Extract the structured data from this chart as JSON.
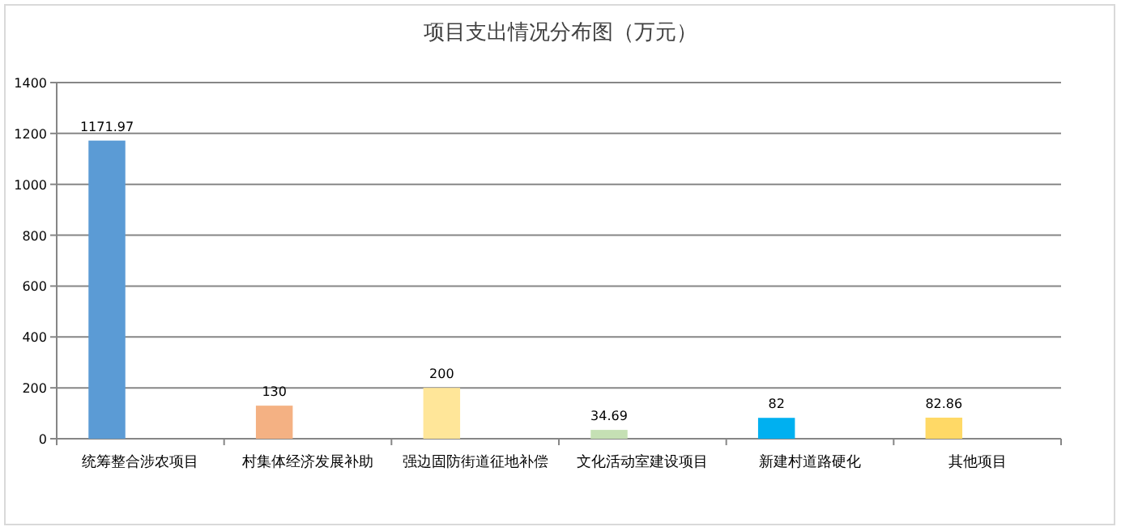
{
  "chart_data": {
    "type": "bar",
    "title": "项目支出情况分布图（万元）",
    "categories": [
      "统筹整合涉农项目",
      "村集体经济发展补助",
      "强边固防街道征地补偿",
      "文化活动室建设项目",
      "新建村道路硬化",
      "其他项目"
    ],
    "values": [
      1171.97,
      130,
      200,
      34.69,
      82,
      82.86
    ],
    "colors": [
      "#5b9bd5",
      "#f4b183",
      "#ffe699",
      "#c5e0b4",
      "#00b0f0",
      "#ffd966"
    ],
    "ylim": [
      0,
      1400
    ],
    "yticks": [
      0,
      200,
      400,
      600,
      800,
      1000,
      1200,
      1400
    ],
    "grid": "y",
    "data_labels": true
  }
}
